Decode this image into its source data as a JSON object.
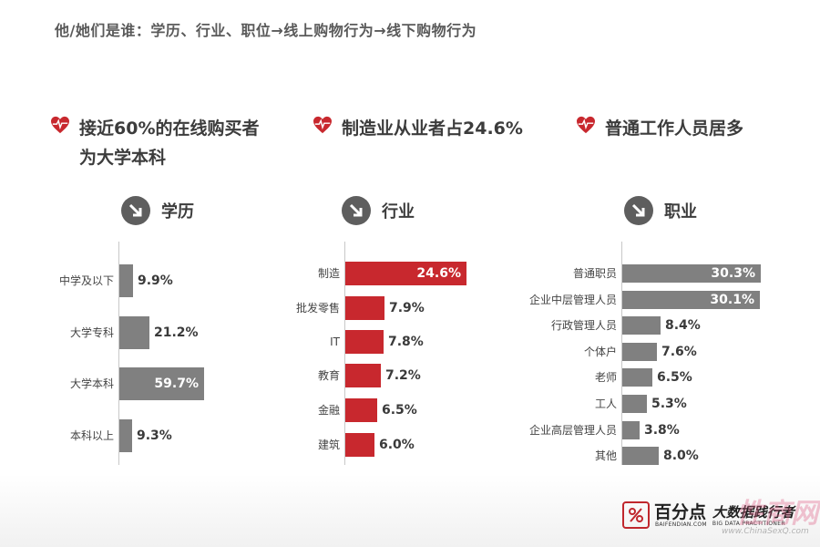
{
  "breadcrumb": "他/她们是谁：学历、行业、职位→线上购物行为→线下购物行为",
  "accent_color": "#c8282e",
  "bar_gray": "#808080",
  "headlines": [
    {
      "icon": "heart-ecg-icon",
      "lines": [
        "接近60%的在线购买者",
        "为大学本科"
      ]
    },
    {
      "icon": "heart-ecg-icon",
      "lines": [
        "制造业从业者占24.6%"
      ]
    },
    {
      "icon": "heart-ecg-icon",
      "lines": [
        "普通工作人员居多"
      ]
    }
  ],
  "sections": [
    {
      "icon": "arrow-down-right-icon",
      "title": "学历"
    },
    {
      "icon": "arrow-down-right-icon",
      "title": "行业"
    },
    {
      "icon": "arrow-down-right-icon",
      "title": "职业"
    }
  ],
  "chart_data": [
    {
      "type": "bar",
      "orientation": "horizontal",
      "title": "学历",
      "categories": [
        "中学及以下",
        "大学专科",
        "大学本科",
        "本科以上"
      ],
      "values": [
        9.9,
        21.2,
        59.7,
        9.3
      ],
      "value_labels": [
        "9.9%",
        "21.2%",
        "59.7%",
        "9.3%"
      ],
      "color": "#808080"
    },
    {
      "type": "bar",
      "orientation": "horizontal",
      "title": "行业",
      "categories": [
        "制造",
        "批发零售",
        "IT",
        "教育",
        "金融",
        "建筑"
      ],
      "values": [
        24.6,
        7.9,
        7.8,
        7.2,
        6.5,
        6.0
      ],
      "value_labels": [
        "24.6%",
        "7.9%",
        "7.8%",
        "7.2%",
        "6.5%",
        "6.0%"
      ],
      "color": "#c8282e"
    },
    {
      "type": "bar",
      "orientation": "horizontal",
      "title": "职业",
      "categories": [
        "普通职员",
        "企业中层管理人员",
        "行政管理人员",
        "个体户",
        "老师",
        "工人",
        "企业高层管理人员",
        "其他"
      ],
      "values": [
        30.3,
        30.1,
        8.4,
        7.6,
        6.5,
        5.3,
        3.8,
        8.0
      ],
      "value_labels": [
        "30.3%",
        "30.1%",
        "8.4%",
        "7.6%",
        "6.5%",
        "5.3%",
        "3.8%",
        "8.0%"
      ],
      "color": "#808080"
    }
  ],
  "logo": {
    "name_cn": "百分点",
    "name_en": "BAIFENDIAN.COM",
    "tagline_cn": "大数据践行者",
    "tagline_en": "BIG DATA PRACTITIONER"
  },
  "watermark": {
    "text": "性商网",
    "url": "www.ChinaSexQ.com"
  }
}
